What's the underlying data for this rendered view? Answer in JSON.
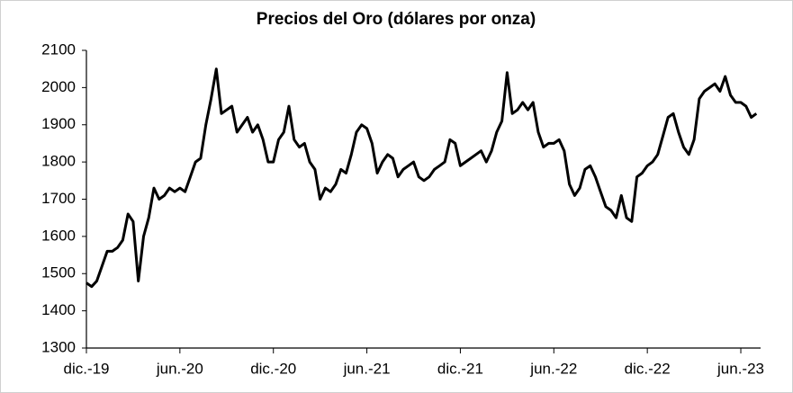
{
  "chart_data": {
    "type": "line",
    "title": "Precios del Oro (dólares por onza)",
    "categories": [
      "dic.-19",
      null,
      null,
      null,
      null,
      null,
      null,
      null,
      null,
      null,
      null,
      null,
      null,
      null,
      null,
      null,
      null,
      null,
      "jun.-20",
      null,
      null,
      null,
      null,
      null,
      null,
      null,
      null,
      null,
      null,
      null,
      null,
      null,
      null,
      null,
      null,
      null,
      "dic.-20",
      null,
      null,
      null,
      null,
      null,
      null,
      null,
      null,
      null,
      null,
      null,
      null,
      null,
      null,
      null,
      null,
      null,
      "jun.-21",
      null,
      null,
      null,
      null,
      null,
      null,
      null,
      null,
      null,
      null,
      null,
      null,
      null,
      null,
      null,
      null,
      null,
      "dic.-21",
      null,
      null,
      null,
      null,
      null,
      null,
      null,
      null,
      null,
      null,
      null,
      null,
      null,
      null,
      null,
      null,
      null,
      "jun.-22",
      null,
      null,
      null,
      null,
      null,
      null,
      null,
      null,
      null,
      null,
      null,
      null,
      null,
      null,
      null,
      null,
      null,
      "dic.-22",
      null,
      null,
      null,
      null,
      null,
      null,
      null,
      null,
      null,
      null,
      null,
      null,
      null,
      null,
      null,
      null,
      null,
      "jun.-23",
      null,
      null,
      null
    ],
    "values": [
      1475,
      1465,
      1480,
      1520,
      1560,
      1560,
      1570,
      1590,
      1660,
      1640,
      1480,
      1600,
      1650,
      1730,
      1700,
      1710,
      1730,
      1720,
      1730,
      1720,
      1760,
      1800,
      1810,
      1900,
      1970,
      2050,
      1930,
      1940,
      1950,
      1880,
      1900,
      1920,
      1880,
      1900,
      1860,
      1800,
      1800,
      1860,
      1880,
      1950,
      1860,
      1840,
      1850,
      1800,
      1780,
      1700,
      1730,
      1720,
      1740,
      1780,
      1770,
      1820,
      1880,
      1900,
      1890,
      1850,
      1770,
      1800,
      1820,
      1810,
      1760,
      1780,
      1790,
      1800,
      1760,
      1750,
      1760,
      1780,
      1790,
      1800,
      1860,
      1850,
      1790,
      1800,
      1810,
      1820,
      1830,
      1800,
      1830,
      1880,
      1910,
      2040,
      1930,
      1940,
      1960,
      1940,
      1960,
      1880,
      1840,
      1850,
      1850,
      1860,
      1830,
      1740,
      1710,
      1730,
      1780,
      1790,
      1760,
      1720,
      1680,
      1670,
      1650,
      1710,
      1650,
      1640,
      1760,
      1770,
      1790,
      1800,
      1820,
      1870,
      1920,
      1930,
      1880,
      1840,
      1820,
      1860,
      1970,
      1990,
      2000,
      2010,
      1990,
      2030,
      1980,
      1960,
      1960,
      1950,
      1920,
      1930
    ],
    "color": "#000000",
    "ylim": [
      1300,
      2100
    ],
    "yticks": [
      1300,
      1400,
      1500,
      1600,
      1700,
      1800,
      1900,
      2000,
      2100
    ],
    "grid": false
  }
}
